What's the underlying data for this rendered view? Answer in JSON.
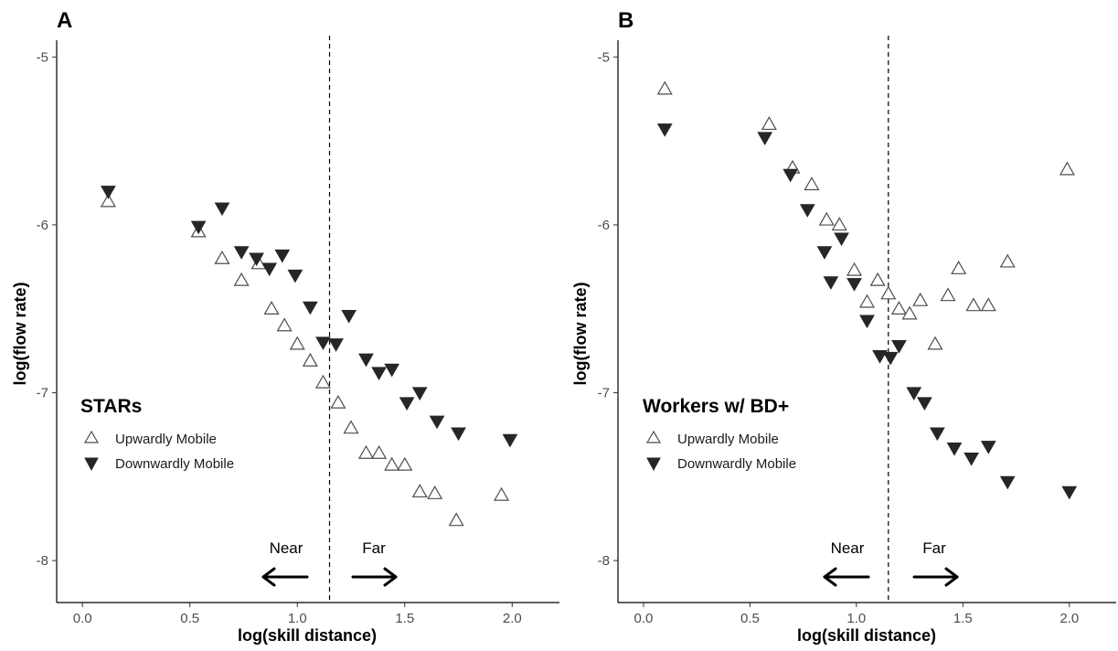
{
  "chart_data": [
    {
      "type": "scatter",
      "panel": "A",
      "xlabel": "log(skill distance)",
      "ylabel": "log(flow rate)",
      "xlim": [
        -0.12,
        2.22
      ],
      "ylim": [
        -8.25,
        -4.9
      ],
      "xticks": [
        0.0,
        0.5,
        1.0,
        1.5,
        2.0
      ],
      "xtick_labels": [
        "0.0",
        "0.5",
        "1.0",
        "1.5",
        "2.0"
      ],
      "yticks": [
        -5,
        -6,
        -7,
        -8
      ],
      "ytick_labels": [
        "-5",
        "-6",
        "-7",
        "-8"
      ],
      "grid": false,
      "legend_position": "bottom-left",
      "legend_title": "STARs",
      "cutoff_x": 1.15,
      "annotations": {
        "near": "Near",
        "far": "Far"
      },
      "series": [
        {
          "name": "Upwardly Mobile",
          "marker": "triangle-up-open",
          "points": [
            [
              0.12,
              -5.86
            ],
            [
              0.54,
              -6.04
            ],
            [
              0.65,
              -6.2
            ],
            [
              0.74,
              -6.33
            ],
            [
              0.82,
              -6.23
            ],
            [
              0.88,
              -6.5
            ],
            [
              0.94,
              -6.6
            ],
            [
              1.0,
              -6.71
            ],
            [
              1.06,
              -6.81
            ],
            [
              1.12,
              -6.94
            ],
            [
              1.19,
              -7.06
            ],
            [
              1.25,
              -7.21
            ],
            [
              1.32,
              -7.36
            ],
            [
              1.38,
              -7.36
            ],
            [
              1.44,
              -7.43
            ],
            [
              1.5,
              -7.43
            ],
            [
              1.57,
              -7.59
            ],
            [
              1.64,
              -7.6
            ],
            [
              1.74,
              -7.76
            ],
            [
              1.95,
              -7.61
            ]
          ]
        },
        {
          "name": "Downwardly Mobile",
          "marker": "triangle-down-filled",
          "points": [
            [
              0.12,
              -5.8
            ],
            [
              0.54,
              -6.01
            ],
            [
              0.65,
              -5.9
            ],
            [
              0.74,
              -6.16
            ],
            [
              0.81,
              -6.2
            ],
            [
              0.87,
              -6.26
            ],
            [
              0.93,
              -6.18
            ],
            [
              0.99,
              -6.3
            ],
            [
              1.06,
              -6.49
            ],
            [
              1.12,
              -6.7
            ],
            [
              1.18,
              -6.71
            ],
            [
              1.24,
              -6.54
            ],
            [
              1.32,
              -6.8
            ],
            [
              1.38,
              -6.88
            ],
            [
              1.44,
              -6.86
            ],
            [
              1.51,
              -7.06
            ],
            [
              1.57,
              -7.0
            ],
            [
              1.65,
              -7.17
            ],
            [
              1.75,
              -7.24
            ],
            [
              1.99,
              -7.28
            ]
          ]
        }
      ]
    },
    {
      "type": "scatter",
      "panel": "B",
      "xlabel": "log(skill distance)",
      "ylabel": "log(flow rate)",
      "xlim": [
        -0.12,
        2.22
      ],
      "ylim": [
        -8.25,
        -4.9
      ],
      "xticks": [
        0.0,
        0.5,
        1.0,
        1.5,
        2.0
      ],
      "xtick_labels": [
        "0.0",
        "0.5",
        "1.0",
        "1.5",
        "2.0"
      ],
      "yticks": [
        -5,
        -6,
        -7,
        -8
      ],
      "ytick_labels": [
        "-5",
        "-6",
        "-7",
        "-8"
      ],
      "grid": false,
      "legend_position": "bottom-left",
      "legend_title": "Workers w/ BD+",
      "cutoff_x": 1.15,
      "annotations": {
        "near": "Near",
        "far": "Far"
      },
      "series": [
        {
          "name": "Upwardly Mobile",
          "marker": "triangle-up-open",
          "points": [
            [
              0.1,
              -5.19
            ],
            [
              0.59,
              -5.4
            ],
            [
              0.7,
              -5.66
            ],
            [
              0.79,
              -5.76
            ],
            [
              0.86,
              -5.97
            ],
            [
              0.92,
              -6.0
            ],
            [
              0.99,
              -6.27
            ],
            [
              1.05,
              -6.46
            ],
            [
              1.1,
              -6.33
            ],
            [
              1.15,
              -6.41
            ],
            [
              1.2,
              -6.5
            ],
            [
              1.25,
              -6.53
            ],
            [
              1.3,
              -6.45
            ],
            [
              1.37,
              -6.71
            ],
            [
              1.43,
              -6.42
            ],
            [
              1.48,
              -6.26
            ],
            [
              1.55,
              -6.48
            ],
            [
              1.62,
              -6.48
            ],
            [
              1.71,
              -6.22
            ],
            [
              1.99,
              -5.67
            ]
          ]
        },
        {
          "name": "Downwardly Mobile",
          "marker": "triangle-down-filled",
          "points": [
            [
              0.1,
              -5.43
            ],
            [
              0.57,
              -5.48
            ],
            [
              0.69,
              -5.7
            ],
            [
              0.77,
              -5.91
            ],
            [
              0.85,
              -6.16
            ],
            [
              0.88,
              -6.34
            ],
            [
              0.93,
              -6.08
            ],
            [
              0.99,
              -6.35
            ],
            [
              1.05,
              -6.57
            ],
            [
              1.11,
              -6.78
            ],
            [
              1.16,
              -6.79
            ],
            [
              1.2,
              -6.72
            ],
            [
              1.27,
              -7.0
            ],
            [
              1.32,
              -7.06
            ],
            [
              1.38,
              -7.24
            ],
            [
              1.46,
              -7.33
            ],
            [
              1.54,
              -7.39
            ],
            [
              1.62,
              -7.32
            ],
            [
              1.71,
              -7.53
            ],
            [
              2.0,
              -7.59
            ]
          ]
        }
      ]
    }
  ]
}
